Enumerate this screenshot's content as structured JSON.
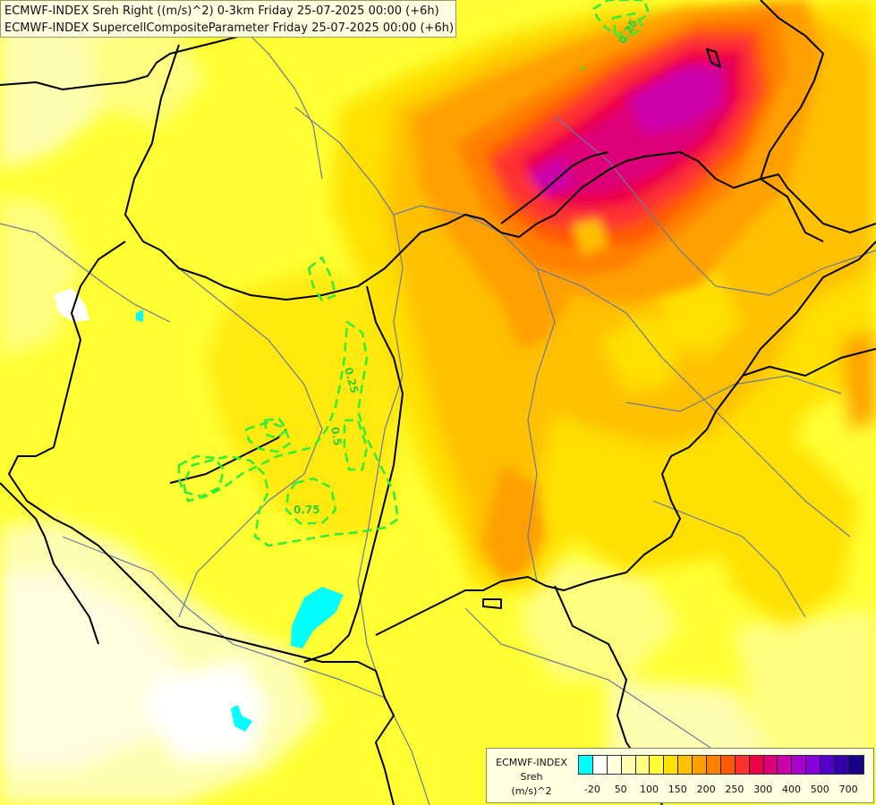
{
  "title": {
    "line1": "ECMWF-INDEX Sreh Right ((m/s)^2) 0-3km Friday 25-07-2025 00:00 (+6h)",
    "line2": "ECMWF-INDEX SupercellCompositeParameter Friday 25-07-2025 00:00 (+6h)"
  },
  "contour_labels": [
    "0.25",
    "0.25",
    "0.5",
    "0.75"
  ],
  "legend": {
    "line1": "ECMWF-INDEX",
    "line2": "Sreh",
    "line3": "(m/s)^2",
    "colors": [
      "#00ffff",
      "#ffffff",
      "#fefee0",
      "#fefeb0",
      "#fefe80",
      "#ffff33",
      "#ffe000",
      "#ffc000",
      "#ffa000",
      "#ff8000",
      "#ff5a00",
      "#ff3030",
      "#ee0044",
      "#dd0077",
      "#cc00aa",
      "#aa00cc",
      "#8800dd",
      "#5500cc",
      "#3300aa",
      "#1a0088"
    ],
    "ticks": [
      "-20",
      "50",
      "100",
      "150",
      "200",
      "250",
      "300",
      "400",
      "500",
      "700"
    ]
  },
  "colors": {
    "field_high": "#ff3030",
    "field_extreme": "#cc00aa",
    "contour": "#33ee33",
    "border": "#000000",
    "river": "#6a7a9a"
  }
}
